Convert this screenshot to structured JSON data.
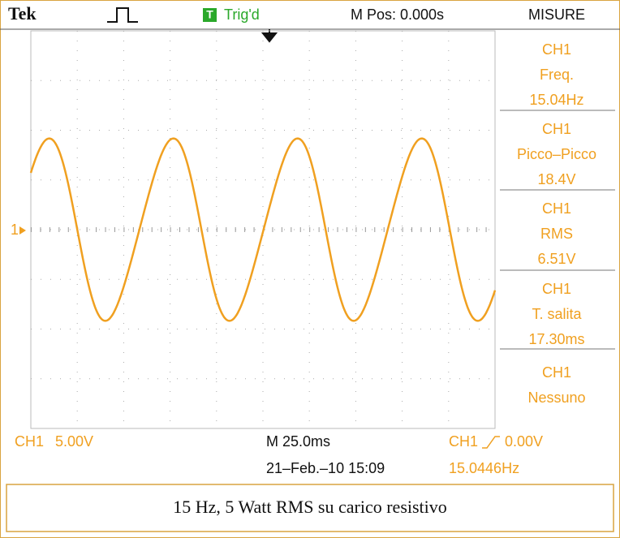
{
  "header": {
    "brand": "Tek",
    "trigger_icon": "T",
    "trigger_status": "Trig'd",
    "position": "M Pos: 0.000s",
    "menu": "MISURE"
  },
  "channel_marker": "1",
  "measurements": [
    {
      "channel": "CH1",
      "label": "Freq.",
      "value": "15.04Hz"
    },
    {
      "channel": "CH1",
      "label": "Picco–Picco",
      "value": "18.4V"
    },
    {
      "channel": "CH1",
      "label": "RMS",
      "value": "6.51V"
    },
    {
      "channel": "CH1",
      "label": "T. salita",
      "value": "17.30ms"
    },
    {
      "channel": "CH1",
      "label": "Nessuno"
    }
  ],
  "footer": {
    "channel": "CH1",
    "scale": "5.00V",
    "timebase": "M 25.0ms",
    "trigger_channel": "CH1",
    "trigger_level": "0.00V",
    "date": "21–Feb.–10 15:09",
    "frequency": "15.0446Hz"
  },
  "caption": "15 Hz, 5 Watt RMS su carico resistivo"
}
